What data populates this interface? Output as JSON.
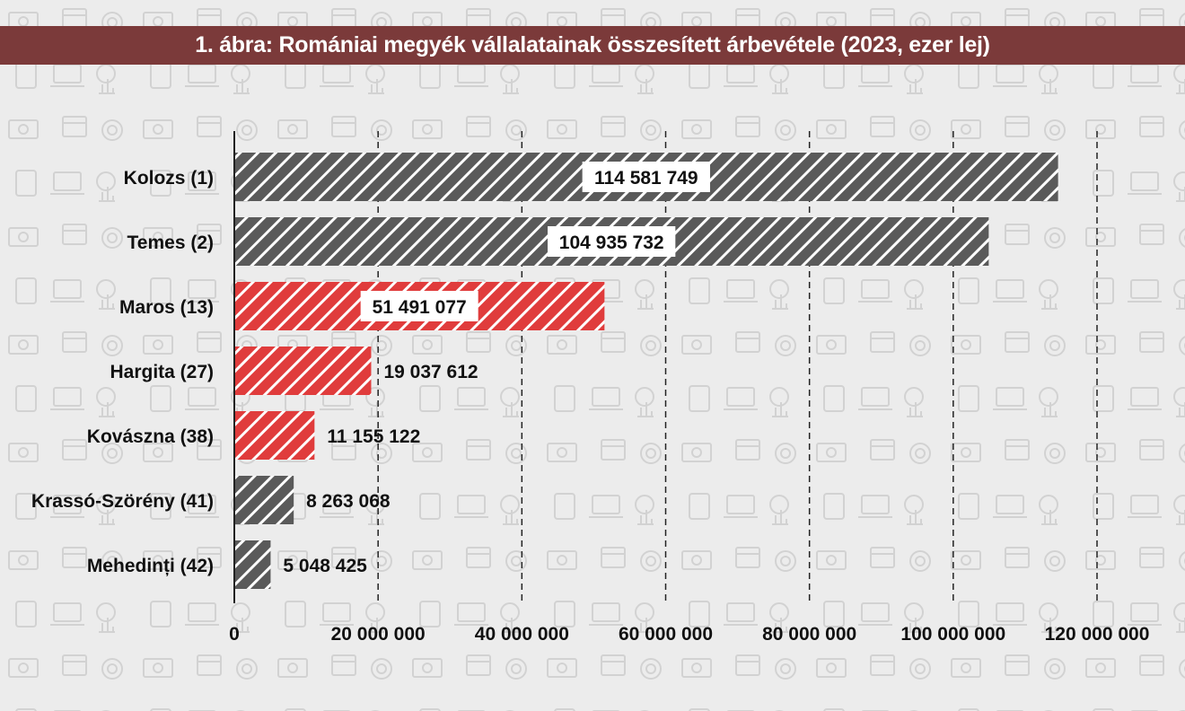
{
  "title": "1. ábra: Romániai megyék vállalatainak összesített árbevétele (2023, ezer lej)",
  "colors": {
    "background": "#ececec",
    "title_bar": "#7b3a3a",
    "bar_gray": "#5a5a5a",
    "bar_red": "#e03c3c",
    "stripe": "#ffffff",
    "grid": "#222222"
  },
  "chart_data": {
    "type": "bar",
    "orientation": "horizontal",
    "categories": [
      "Kolozs (1)",
      "Temes (2)",
      "Maros (13)",
      "Hargita (27)",
      "Kovászna (38)",
      "Krassó-Szörény (41)",
      "Mehedinți (42)"
    ],
    "values": [
      114581749,
      104935732,
      51491077,
      19037612,
      11155122,
      8263068,
      5048425
    ],
    "value_labels": [
      "114 581 749",
      "104 935 732",
      "51 491 077",
      "19 037 612",
      "11 155 122",
      "8 263 068",
      "5 048 425"
    ],
    "highlighted": [
      false,
      false,
      true,
      true,
      true,
      false,
      false
    ],
    "label_boxed": [
      true,
      true,
      true,
      false,
      false,
      false,
      false
    ],
    "xlim": [
      0,
      120000000
    ],
    "xticks": [
      0,
      20000000,
      40000000,
      60000000,
      80000000,
      100000000,
      120000000
    ],
    "xtick_labels": [
      "0",
      "20 000 000",
      "40 000 000",
      "60 000 000",
      "80 000 000",
      "100 000 000",
      "120 000 000"
    ],
    "grid": "vertical dashed",
    "legend": "none",
    "title": "1. ábra: Romániai megyék vállalatainak összesített árbevétele (2023, ezer lej)",
    "xlabel": "",
    "ylabel": ""
  }
}
